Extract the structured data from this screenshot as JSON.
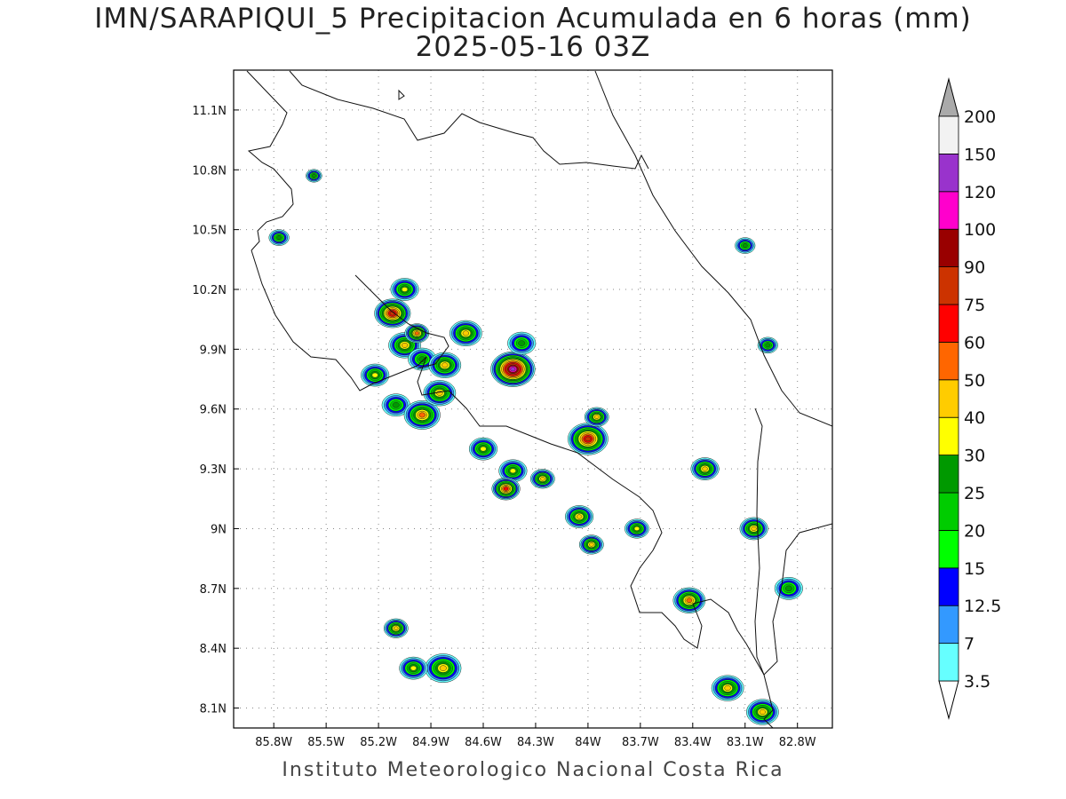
{
  "title_line1": "IMN/SARAPIQUI_5 Precipitacion Acumulada en 6 horas (mm)",
  "title_line2": "2025-05-16 03Z",
  "footer": "Instituto Meteorologico Nacional Costa Rica",
  "map": {
    "lon_range": [
      -86.03,
      -82.6
    ],
    "lat_range": [
      8.0,
      11.3
    ],
    "lat_ticks": [
      {
        "v": 11.1,
        "label": "11.1N"
      },
      {
        "v": 10.8,
        "label": "10.8N"
      },
      {
        "v": 10.5,
        "label": "10.5N"
      },
      {
        "v": 10.2,
        "label": "10.2N"
      },
      {
        "v": 9.9,
        "label": "9.9N"
      },
      {
        "v": 9.6,
        "label": "9.6N"
      },
      {
        "v": 9.3,
        "label": "9.3N"
      },
      {
        "v": 9.0,
        "label": "9N"
      },
      {
        "v": 8.7,
        "label": "8.7N"
      },
      {
        "v": 8.4,
        "label": "8.4N"
      },
      {
        "v": 8.1,
        "label": "8.1N"
      }
    ],
    "lon_ticks": [
      {
        "v": -85.8,
        "label": "85.8W"
      },
      {
        "v": -85.5,
        "label": "85.5W"
      },
      {
        "v": -85.2,
        "label": "85.2W"
      },
      {
        "v": -84.9,
        "label": "84.9W"
      },
      {
        "v": -84.6,
        "label": "84.6W"
      },
      {
        "v": -84.3,
        "label": "84.3W"
      },
      {
        "v": -84.0,
        "label": "84W"
      },
      {
        "v": -83.7,
        "label": "83.7W"
      },
      {
        "v": -83.4,
        "label": "83.4W"
      },
      {
        "v": -83.1,
        "label": "83.1W"
      },
      {
        "v": -82.8,
        "label": "82.8W"
      }
    ],
    "grid": "dotted"
  },
  "colorbar": {
    "labels": [
      "3.5",
      "7",
      "12.5",
      "15",
      "20",
      "25",
      "30",
      "40",
      "50",
      "60",
      "75",
      "90",
      "100",
      "120",
      "150",
      "200"
    ],
    "colors": [
      "#66ffff",
      "#3399ff",
      "#0000ff",
      "#00ff00",
      "#00cc00",
      "#009900",
      "#ffff00",
      "#ffcc00",
      "#ff6600",
      "#ff0000",
      "#cc3300",
      "#990000",
      "#ff00cc",
      "#9933cc",
      "#f2f2f2",
      "#aaaaaa"
    ]
  },
  "chart_data": {
    "type": "heatmap",
    "variable": "Precipitacion Acumulada en 6 horas (mm)",
    "levels": [
      3.5,
      7,
      12.5,
      15,
      20,
      25,
      30,
      40,
      50,
      60,
      75,
      90,
      100,
      120,
      150,
      200
    ],
    "cells": [
      {
        "lon": -85.12,
        "lat": 10.08,
        "r": 0.09,
        "v": 75
      },
      {
        "lon": -85.05,
        "lat": 9.92,
        "r": 0.08,
        "v": 40
      },
      {
        "lon": -84.98,
        "lat": 9.98,
        "r": 0.06,
        "v": 50
      },
      {
        "lon": -84.95,
        "lat": 9.85,
        "r": 0.07,
        "v": 25
      },
      {
        "lon": -85.05,
        "lat": 10.2,
        "r": 0.07,
        "v": 30
      },
      {
        "lon": -85.22,
        "lat": 9.77,
        "r": 0.07,
        "v": 30
      },
      {
        "lon": -85.1,
        "lat": 9.62,
        "r": 0.07,
        "v": 25
      },
      {
        "lon": -84.95,
        "lat": 9.57,
        "r": 0.09,
        "v": 50
      },
      {
        "lon": -84.85,
        "lat": 9.68,
        "r": 0.08,
        "v": 40
      },
      {
        "lon": -84.82,
        "lat": 9.82,
        "r": 0.08,
        "v": 40
      },
      {
        "lon": -84.7,
        "lat": 9.98,
        "r": 0.08,
        "v": 40
      },
      {
        "lon": -84.43,
        "lat": 9.8,
        "r": 0.11,
        "v": 120
      },
      {
        "lon": -84.38,
        "lat": 9.93,
        "r": 0.07,
        "v": 25
      },
      {
        "lon": -84.0,
        "lat": 9.45,
        "r": 0.1,
        "v": 75
      },
      {
        "lon": -83.95,
        "lat": 9.56,
        "r": 0.06,
        "v": 40
      },
      {
        "lon": -84.6,
        "lat": 9.4,
        "r": 0.07,
        "v": 30
      },
      {
        "lon": -84.43,
        "lat": 9.29,
        "r": 0.07,
        "v": 30
      },
      {
        "lon": -84.26,
        "lat": 9.25,
        "r": 0.06,
        "v": 40
      },
      {
        "lon": -84.47,
        "lat": 9.2,
        "r": 0.07,
        "v": 60
      },
      {
        "lon": -84.05,
        "lat": 9.06,
        "r": 0.07,
        "v": 40
      },
      {
        "lon": -83.98,
        "lat": 8.92,
        "r": 0.06,
        "v": 40
      },
      {
        "lon": -83.72,
        "lat": 9.0,
        "r": 0.06,
        "v": 30
      },
      {
        "lon": -83.42,
        "lat": 8.64,
        "r": 0.08,
        "v": 50
      },
      {
        "lon": -83.33,
        "lat": 9.3,
        "r": 0.07,
        "v": 40
      },
      {
        "lon": -83.05,
        "lat": 9.0,
        "r": 0.07,
        "v": 40
      },
      {
        "lon": -82.85,
        "lat": 8.7,
        "r": 0.07,
        "v": 25
      },
      {
        "lon": -85.1,
        "lat": 8.5,
        "r": 0.06,
        "v": 40
      },
      {
        "lon": -84.83,
        "lat": 8.3,
        "r": 0.09,
        "v": 40
      },
      {
        "lon": -85.0,
        "lat": 8.3,
        "r": 0.07,
        "v": 30
      },
      {
        "lon": -83.2,
        "lat": 8.2,
        "r": 0.08,
        "v": 40
      },
      {
        "lon": -83.0,
        "lat": 8.08,
        "r": 0.08,
        "v": 40
      },
      {
        "lon": -85.77,
        "lat": 10.46,
        "r": 0.05,
        "v": 25
      },
      {
        "lon": -85.57,
        "lat": 10.77,
        "r": 0.04,
        "v": 25
      },
      {
        "lon": -83.1,
        "lat": 10.42,
        "r": 0.05,
        "v": 25
      },
      {
        "lon": -82.97,
        "lat": 9.92,
        "r": 0.05,
        "v": 25
      }
    ]
  }
}
